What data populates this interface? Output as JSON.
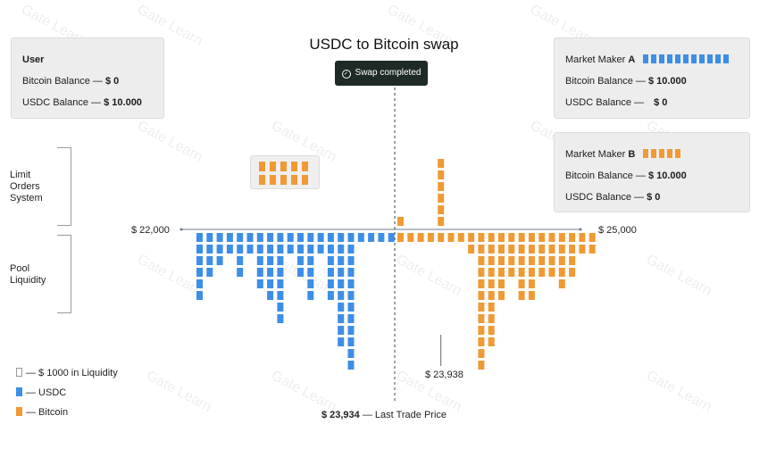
{
  "title": "USDC to Bitcoin swap",
  "toast": {
    "label": "Swap completed",
    "icon": "check-circle-icon"
  },
  "watermark": "Gate Learn",
  "user_card": {
    "heading": "User",
    "btc_label": "Bitcoin Balance —",
    "btc_value": "$ 0",
    "usdc_label": "USDC Balance —",
    "usdc_value": "$ 10.000"
  },
  "maker_a": {
    "name_prefix": "Market Maker",
    "name_letter": "A",
    "squares": 11,
    "color": "#3d8ee6",
    "btc_label": "Bitcoin Balance —",
    "btc_value": "$ 10.000",
    "usdc_label": "USDC Balance —",
    "usdc_value": "$ 0"
  },
  "maker_b": {
    "name_prefix": "Market Maker",
    "name_letter": "B",
    "squares": 5,
    "color": "#ef9a35",
    "btc_label": "Bitcoin Balance —",
    "btc_value": "$ 10.000",
    "usdc_label": "USDC Balance —",
    "usdc_value": "$ 0"
  },
  "sections": {
    "limit_orders": "Limit Orders System",
    "pool": "Pool Liquidity"
  },
  "axis": {
    "left_label": "$ 22,000",
    "right_label": "$ 25,000",
    "marker_label": "$ 23,938",
    "last_trade_value": "$ 23,934",
    "last_trade_suffix": "— Last Trade Price"
  },
  "legend": [
    {
      "label": "— $ 1000 in Liquidity",
      "kind": "outline"
    },
    {
      "label": "— USDC",
      "kind": "usdc"
    },
    {
      "label": "— Bitcoin",
      "kind": "btc"
    }
  ],
  "colors": {
    "usdc": "#3d8ee6",
    "btc": "#ef9a35",
    "axis": "#6a7a8c"
  },
  "chart_data": {
    "type": "bar",
    "unit": "$ 1000 in Liquidity per square",
    "usdc_pool_columns": [
      6,
      4,
      3,
      2,
      4,
      2,
      5,
      6,
      8,
      2,
      4,
      6,
      2,
      6,
      10,
      12,
      1,
      1,
      1,
      1
    ],
    "btc_pool_columns": [
      1,
      1,
      1,
      1,
      1,
      1,
      1,
      2,
      12,
      10,
      6,
      4,
      6,
      6,
      4,
      4,
      5,
      4,
      2,
      2
    ],
    "btc_limit_orders_above_axis": [
      {
        "column": "first_btc",
        "squares": 1
      },
      {
        "column": "near_marker",
        "squares": 6
      }
    ],
    "pending_limit_orders": {
      "rows": 2,
      "cols": 5
    }
  }
}
